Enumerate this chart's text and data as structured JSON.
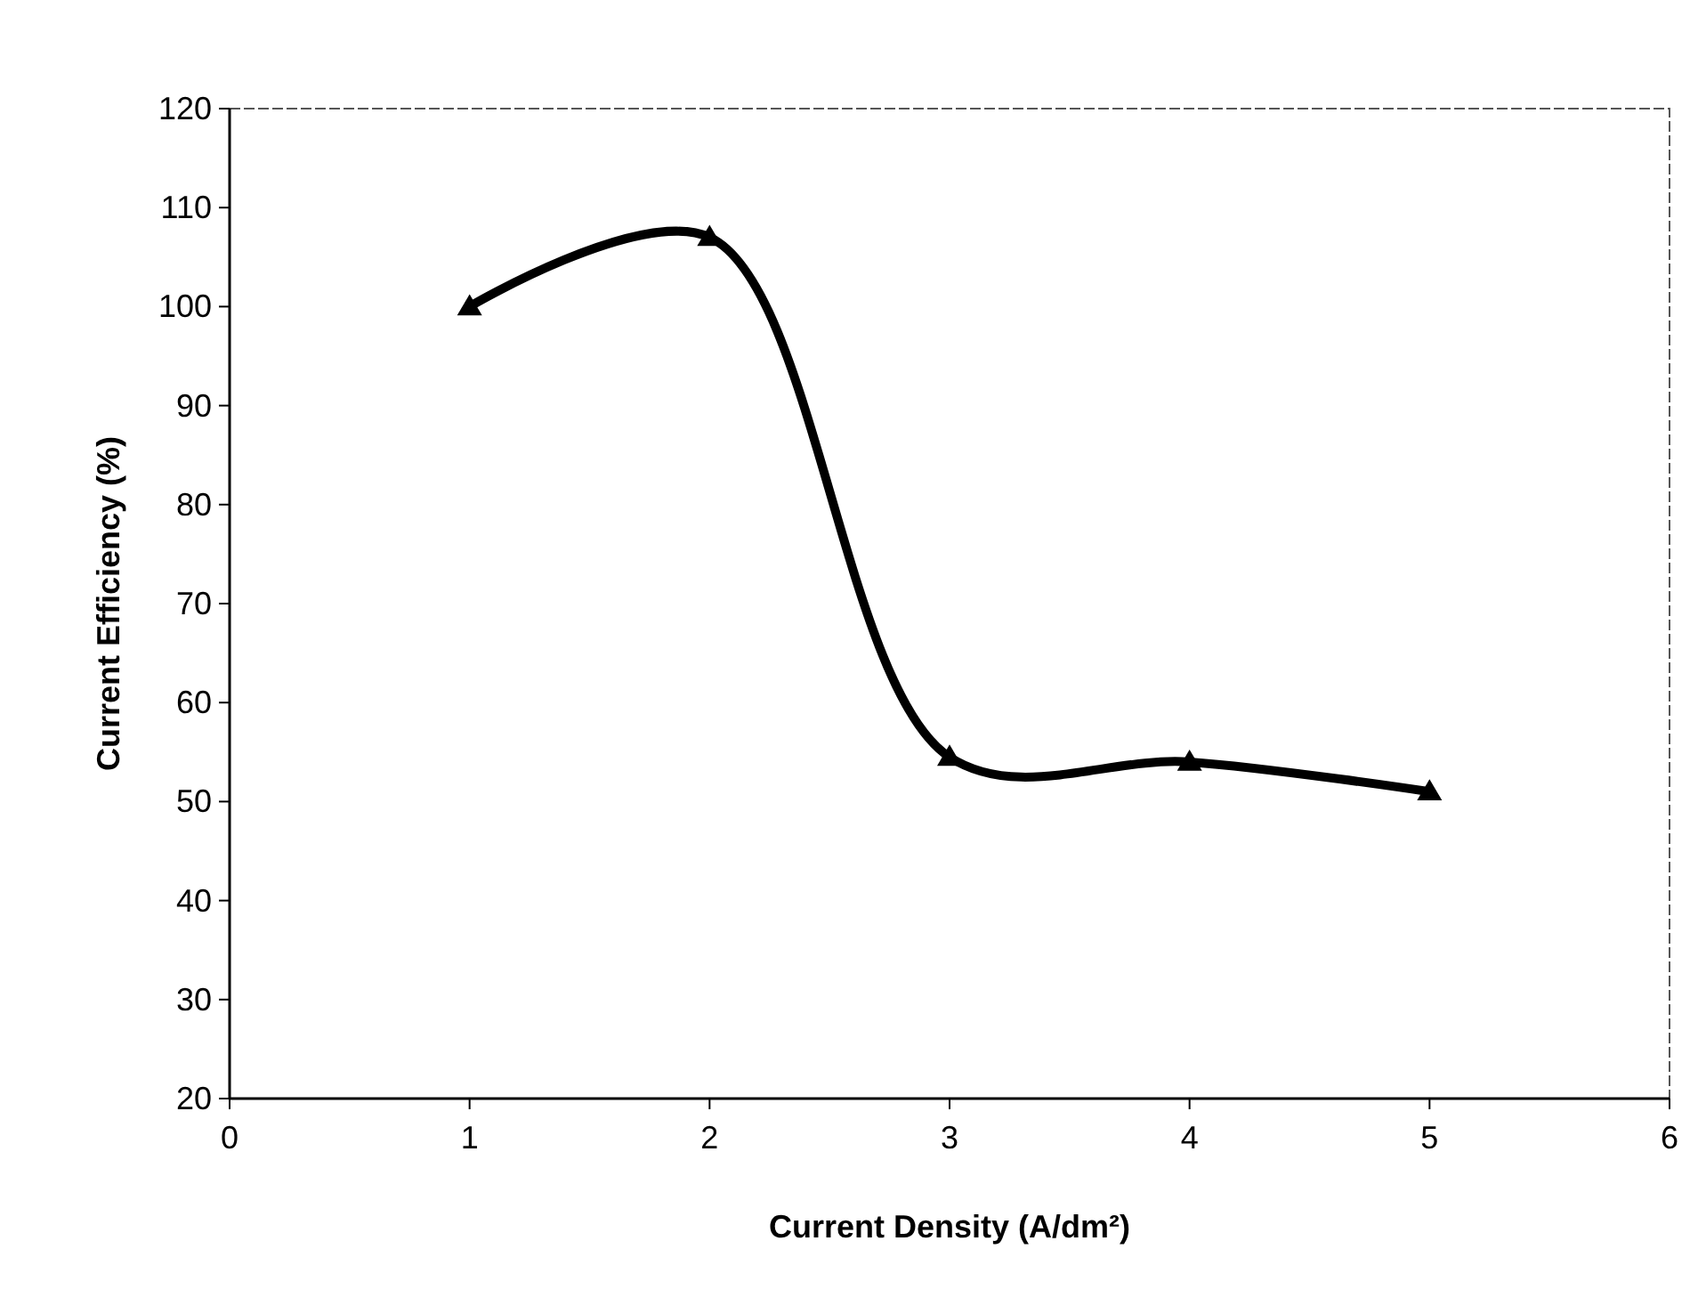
{
  "chart_data": {
    "type": "line",
    "xlabel": "Current Density (A/dm²)",
    "ylabel": "Current Efficiency (%)",
    "x": [
      1,
      2,
      3,
      4,
      5
    ],
    "series": [
      {
        "color": "#000000",
        "values": [
          100,
          107,
          54.5,
          54,
          51
        ]
      }
    ],
    "xlim": [
      0,
      6
    ],
    "xticks": [
      0,
      1,
      2,
      3,
      4,
      5,
      6
    ],
    "ylim": [
      20,
      120
    ],
    "yticks": [
      20,
      30,
      40,
      50,
      60,
      70,
      80,
      90,
      100,
      110,
      120
    ],
    "marker": "triangle",
    "line_style": "solid"
  }
}
